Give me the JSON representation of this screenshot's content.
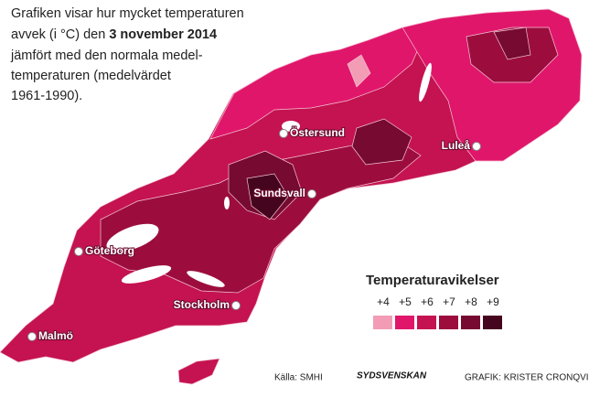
{
  "description": {
    "lines": [
      "Grafiken visar hur mycket temperaturen",
      "avvek (i °C) den",
      "jämfört med den normala medel-",
      "temperaturen (medelvärdet",
      "1961-1990)."
    ],
    "date": "3 november 2014"
  },
  "cities": [
    "Östersund",
    "Luleå",
    "Sundsvall",
    "Göteborg",
    "Stockholm",
    "Malmö"
  ],
  "legend": {
    "title": "Temperaturavikelser",
    "items": [
      {
        "label": "+4",
        "color": "#f29cb5"
      },
      {
        "label": "+5",
        "color": "#e0166b"
      },
      {
        "label": "+6",
        "color": "#c41350"
      },
      {
        "label": "+7",
        "color": "#9c0d3e"
      },
      {
        "label": "+8",
        "color": "#760a30"
      },
      {
        "label": "+9",
        "color": "#46051e"
      }
    ]
  },
  "footer": {
    "source": "Källa: SMHI",
    "logo": "SYDSVENSKAN",
    "credit": "GRAFIK: KRISTER CRONQVIST"
  }
}
